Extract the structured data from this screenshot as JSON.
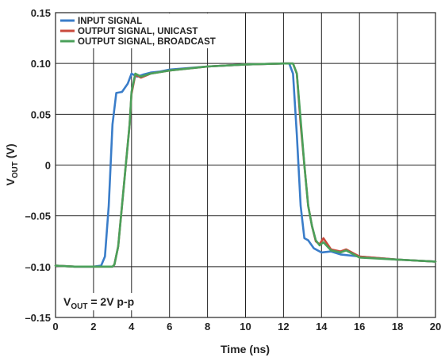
{
  "chart_data": {
    "type": "line",
    "title": "",
    "xlabel": "Time (ns)",
    "ylabel_main": "V",
    "ylabel_sub": "OUT",
    "ylabel_unit": "(V)",
    "xlim": [
      0,
      20
    ],
    "ylim": [
      -0.15,
      0.15
    ],
    "x_ticks": [
      0,
      2,
      4,
      6,
      8,
      10,
      12,
      14,
      16,
      18,
      20
    ],
    "x_tick_labels": [
      "0",
      "2",
      "4",
      "6",
      "8",
      "10",
      "12",
      "14",
      "16",
      "18",
      "20"
    ],
    "y_ticks": [
      0.15,
      0.1,
      0.05,
      0,
      -0.05,
      -0.1,
      -0.15
    ],
    "y_tick_labels": [
      "0.15",
      "0.10",
      "0.05",
      "0",
      "–0.05",
      "–0.10",
      "–0.15"
    ],
    "grid": true,
    "legend_position": "top-left",
    "annotation": {
      "main": "V",
      "sub": "OUT",
      "rest": " = 2V p-p"
    },
    "series": [
      {
        "name": "INPUT SIGNAL",
        "color": "#3a7dc9",
        "x": [
          0,
          1,
          2,
          2.4,
          2.6,
          2.8,
          3.0,
          3.2,
          3.5,
          3.8,
          4.0,
          4.3,
          4.6,
          5.0,
          5.5,
          6,
          8,
          10,
          12,
          12.3,
          12.5,
          12.7,
          12.9,
          13.1,
          13.3,
          13.6,
          14.0,
          14.5,
          15,
          16,
          18,
          20
        ],
        "y": [
          -0.099,
          -0.1,
          -0.1,
          -0.099,
          -0.09,
          -0.04,
          0.04,
          0.071,
          0.072,
          0.08,
          0.09,
          0.087,
          0.089,
          0.091,
          0.092,
          0.094,
          0.097,
          0.099,
          0.1,
          0.1,
          0.09,
          0.03,
          -0.04,
          -0.072,
          -0.074,
          -0.082,
          -0.086,
          -0.085,
          -0.088,
          -0.09,
          -0.093,
          -0.095
        ]
      },
      {
        "name": "OUTPUT SIGNAL, UNICAST",
        "color": "#c94a3c",
        "x": [
          0,
          1,
          2,
          3.0,
          3.1,
          3.3,
          3.5,
          3.7,
          3.9,
          4.0,
          4.2,
          4.5,
          5.0,
          6,
          8,
          10,
          12,
          12.5,
          12.7,
          12.9,
          13.1,
          13.3,
          13.5,
          13.7,
          13.9,
          14.1,
          14.5,
          15,
          15.3,
          16,
          18,
          20
        ],
        "y": [
          -0.099,
          -0.1,
          -0.1,
          -0.1,
          -0.098,
          -0.08,
          -0.04,
          0.0,
          0.04,
          0.07,
          0.089,
          0.086,
          0.09,
          0.093,
          0.097,
          0.099,
          0.1,
          0.1,
          0.09,
          0.04,
          0.0,
          -0.04,
          -0.06,
          -0.075,
          -0.078,
          -0.072,
          -0.083,
          -0.085,
          -0.083,
          -0.09,
          -0.093,
          -0.095
        ]
      },
      {
        "name": "OUTPUT SIGNAL, BROADCAST",
        "color": "#4aa05a",
        "x": [
          0,
          1,
          2,
          3.0,
          3.1,
          3.3,
          3.5,
          3.7,
          3.9,
          4.0,
          4.2,
          4.5,
          5.0,
          6,
          8,
          10,
          12,
          12.5,
          12.7,
          12.9,
          13.1,
          13.3,
          13.5,
          13.7,
          13.9,
          14.1,
          14.5,
          15,
          15.3,
          16,
          18,
          20
        ],
        "y": [
          -0.099,
          -0.1,
          -0.1,
          -0.1,
          -0.098,
          -0.08,
          -0.04,
          0.0,
          0.04,
          0.072,
          0.09,
          0.087,
          0.09,
          0.093,
          0.097,
          0.099,
          0.1,
          0.1,
          0.09,
          0.045,
          0.0,
          -0.04,
          -0.06,
          -0.074,
          -0.079,
          -0.076,
          -0.084,
          -0.086,
          -0.084,
          -0.091,
          -0.093,
          -0.095
        ]
      }
    ]
  }
}
